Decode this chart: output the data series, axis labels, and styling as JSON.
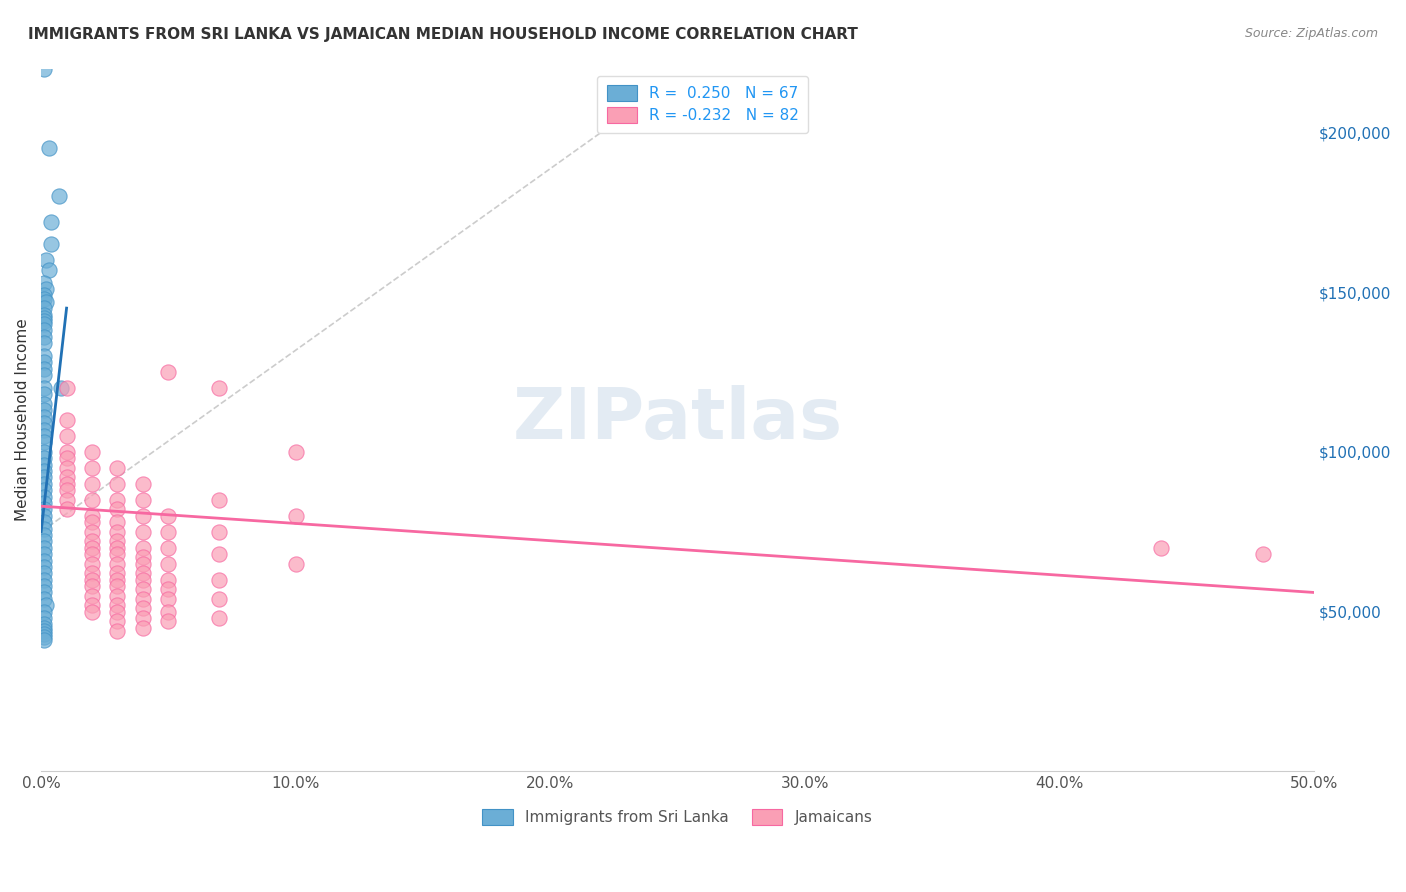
{
  "title": "IMMIGRANTS FROM SRI LANKA VS JAMAICAN MEDIAN HOUSEHOLD INCOME CORRELATION CHART",
  "source": "Source: ZipAtlas.com",
  "xlabel_ticks": [
    "0.0%",
    "10.0%",
    "20.0%",
    "30.0%",
    "40.0%",
    "50.0%"
  ],
  "ylabel_label": "Median Household Income",
  "ylabel_ticks_labels": [
    "$50,000",
    "$100,000",
    "$150,000",
    "$200,000"
  ],
  "ylabel_ticks_values": [
    50000,
    100000,
    150000,
    200000
  ],
  "xlim": [
    0.0,
    0.5
  ],
  "ylim": [
    0,
    220000
  ],
  "legend_r1": "R =  0.250",
  "legend_n1": "N = 67",
  "legend_r2": "R = -0.232",
  "legend_n2": "N = 82",
  "watermark": "ZIPatlas",
  "blue_color": "#6baed6",
  "blue_border": "#4292c6",
  "pink_color": "#fa9fb5",
  "pink_border": "#f768a1",
  "blue_line_color": "#2171b5",
  "pink_line_color": "#f768a1",
  "dashed_line_color": "#aaaaaa",
  "sri_lanka_dots": [
    [
      0.001,
      220000
    ],
    [
      0.003,
      195000
    ],
    [
      0.007,
      180000
    ],
    [
      0.004,
      172000
    ],
    [
      0.004,
      165000
    ],
    [
      0.002,
      160000
    ],
    [
      0.003,
      157000
    ],
    [
      0.001,
      153000
    ],
    [
      0.002,
      151000
    ],
    [
      0.001,
      149000
    ],
    [
      0.001,
      148000
    ],
    [
      0.002,
      147000
    ],
    [
      0.001,
      145000
    ],
    [
      0.001,
      143000
    ],
    [
      0.001,
      142000
    ],
    [
      0.001,
      141000
    ],
    [
      0.001,
      140000
    ],
    [
      0.001,
      138000
    ],
    [
      0.001,
      136000
    ],
    [
      0.001,
      134000
    ],
    [
      0.001,
      130000
    ],
    [
      0.001,
      128000
    ],
    [
      0.001,
      126000
    ],
    [
      0.001,
      124000
    ],
    [
      0.001,
      120000
    ],
    [
      0.001,
      118000
    ],
    [
      0.001,
      115000
    ],
    [
      0.001,
      113000
    ],
    [
      0.001,
      111000
    ],
    [
      0.001,
      109000
    ],
    [
      0.001,
      107000
    ],
    [
      0.001,
      105000
    ],
    [
      0.001,
      103000
    ],
    [
      0.001,
      100000
    ],
    [
      0.001,
      98000
    ],
    [
      0.001,
      96000
    ],
    [
      0.001,
      94000
    ],
    [
      0.001,
      92000
    ],
    [
      0.001,
      90000
    ],
    [
      0.001,
      88000
    ],
    [
      0.001,
      86000
    ],
    [
      0.001,
      84000
    ],
    [
      0.001,
      82000
    ],
    [
      0.001,
      80000
    ],
    [
      0.001,
      78000
    ],
    [
      0.001,
      76000
    ],
    [
      0.001,
      74000
    ],
    [
      0.001,
      72000
    ],
    [
      0.001,
      70000
    ],
    [
      0.001,
      68000
    ],
    [
      0.001,
      66000
    ],
    [
      0.001,
      64000
    ],
    [
      0.001,
      62000
    ],
    [
      0.001,
      60000
    ],
    [
      0.001,
      58000
    ],
    [
      0.001,
      56000
    ],
    [
      0.001,
      54000
    ],
    [
      0.008,
      120000
    ],
    [
      0.002,
      52000
    ],
    [
      0.001,
      50000
    ],
    [
      0.001,
      48000
    ],
    [
      0.001,
      46000
    ],
    [
      0.001,
      45000
    ],
    [
      0.001,
      44000
    ],
    [
      0.001,
      43000
    ],
    [
      0.001,
      42000
    ],
    [
      0.001,
      41000
    ]
  ],
  "jamaican_dots": [
    [
      0.01,
      120000
    ],
    [
      0.01,
      110000
    ],
    [
      0.01,
      105000
    ],
    [
      0.01,
      100000
    ],
    [
      0.01,
      98000
    ],
    [
      0.01,
      95000
    ],
    [
      0.01,
      92000
    ],
    [
      0.01,
      90000
    ],
    [
      0.01,
      88000
    ],
    [
      0.01,
      85000
    ],
    [
      0.01,
      82000
    ],
    [
      0.02,
      100000
    ],
    [
      0.02,
      95000
    ],
    [
      0.02,
      90000
    ],
    [
      0.02,
      85000
    ],
    [
      0.02,
      80000
    ],
    [
      0.02,
      78000
    ],
    [
      0.02,
      75000
    ],
    [
      0.02,
      72000
    ],
    [
      0.02,
      70000
    ],
    [
      0.02,
      68000
    ],
    [
      0.02,
      65000
    ],
    [
      0.02,
      62000
    ],
    [
      0.02,
      60000
    ],
    [
      0.02,
      58000
    ],
    [
      0.02,
      55000
    ],
    [
      0.02,
      52000
    ],
    [
      0.02,
      50000
    ],
    [
      0.03,
      95000
    ],
    [
      0.03,
      90000
    ],
    [
      0.03,
      85000
    ],
    [
      0.03,
      82000
    ],
    [
      0.03,
      78000
    ],
    [
      0.03,
      75000
    ],
    [
      0.03,
      72000
    ],
    [
      0.03,
      70000
    ],
    [
      0.03,
      68000
    ],
    [
      0.03,
      65000
    ],
    [
      0.03,
      62000
    ],
    [
      0.03,
      60000
    ],
    [
      0.03,
      58000
    ],
    [
      0.03,
      55000
    ],
    [
      0.03,
      52000
    ],
    [
      0.03,
      50000
    ],
    [
      0.03,
      47000
    ],
    [
      0.03,
      44000
    ],
    [
      0.04,
      90000
    ],
    [
      0.04,
      85000
    ],
    [
      0.04,
      80000
    ],
    [
      0.04,
      75000
    ],
    [
      0.04,
      70000
    ],
    [
      0.04,
      67000
    ],
    [
      0.04,
      65000
    ],
    [
      0.04,
      62000
    ],
    [
      0.04,
      60000
    ],
    [
      0.04,
      57000
    ],
    [
      0.04,
      54000
    ],
    [
      0.04,
      51000
    ],
    [
      0.04,
      48000
    ],
    [
      0.04,
      45000
    ],
    [
      0.05,
      125000
    ],
    [
      0.05,
      80000
    ],
    [
      0.05,
      75000
    ],
    [
      0.05,
      70000
    ],
    [
      0.05,
      65000
    ],
    [
      0.05,
      60000
    ],
    [
      0.05,
      57000
    ],
    [
      0.05,
      54000
    ],
    [
      0.05,
      50000
    ],
    [
      0.05,
      47000
    ],
    [
      0.07,
      120000
    ],
    [
      0.07,
      85000
    ],
    [
      0.07,
      75000
    ],
    [
      0.07,
      68000
    ],
    [
      0.07,
      60000
    ],
    [
      0.07,
      54000
    ],
    [
      0.07,
      48000
    ],
    [
      0.1,
      100000
    ],
    [
      0.1,
      80000
    ],
    [
      0.1,
      65000
    ],
    [
      0.44,
      70000
    ],
    [
      0.48,
      68000
    ]
  ],
  "sri_lanka_line_x": [
    0.0,
    0.01
  ],
  "sri_lanka_line_y": [
    75000,
    145000
  ],
  "jamaican_line_x": [
    0.0,
    0.5
  ],
  "jamaican_line_y": [
    83000,
    56000
  ],
  "dashed_line_x": [
    0.0,
    0.22
  ],
  "dashed_line_y": [
    75000,
    200000
  ]
}
